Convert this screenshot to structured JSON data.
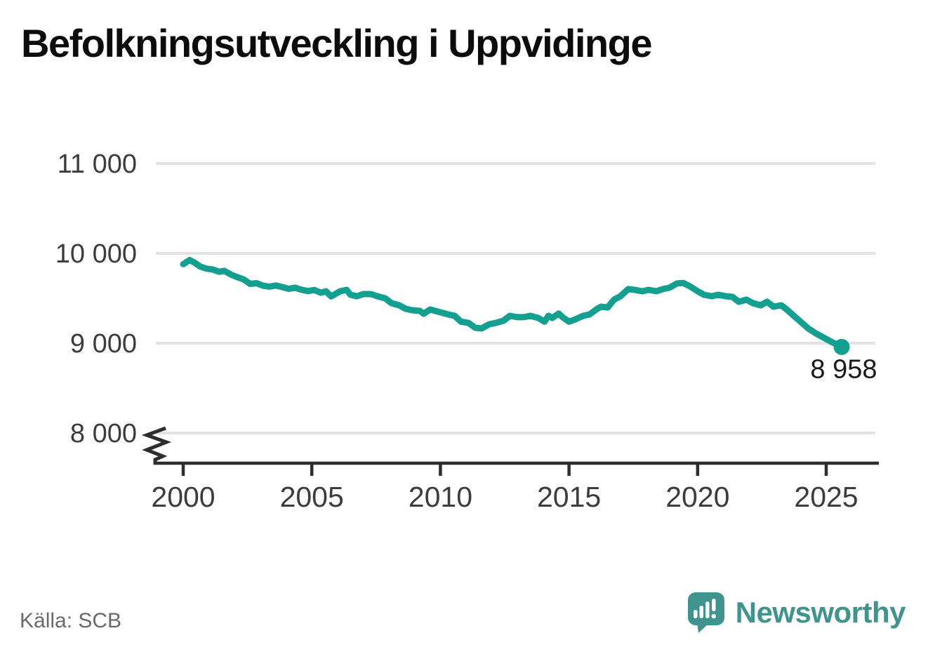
{
  "title": "Befolkningsutveckling i Uppvidinge",
  "source": "Källa: SCB",
  "brand": {
    "name": "Newsworthy",
    "color": "#3f948d",
    "icon": "speech-bubble-bar-chart-icon"
  },
  "colors": {
    "line": "#14a091",
    "grid": "#e3e3e3",
    "axis": "#2d2d2d",
    "tick_label": "#3c3c3c",
    "annotation": "#1a1a1a"
  },
  "chart_data": {
    "type": "line",
    "title": "Befolkningsutveckling i Uppvidinge",
    "xlabel": "",
    "ylabel": "",
    "grid": "horizontal",
    "legend": "none",
    "axis_break": true,
    "xlim": [
      1998.9,
      2027
    ],
    "ylim": [
      7800,
      11250
    ],
    "x_ticks": [
      {
        "label": "2000",
        "value": 2000
      },
      {
        "label": "2005",
        "value": 2005
      },
      {
        "label": "2010",
        "value": 2010
      },
      {
        "label": "2015",
        "value": 2015
      },
      {
        "label": "2020",
        "value": 2020
      },
      {
        "label": "2025",
        "value": 2025
      }
    ],
    "y_ticks": [
      {
        "label": "11 000",
        "value": 11000
      },
      {
        "label": "10 000",
        "value": 10000
      },
      {
        "label": "9 000",
        "value": 9000
      },
      {
        "label": "8 000",
        "value": 8000
      }
    ],
    "end_label": "8 958",
    "end_value": 8958,
    "series": [
      {
        "name": "Befolkning",
        "color": "#14a091",
        "x": [
          2000.0,
          2000.25,
          2000.45,
          2000.65,
          2000.9,
          2001.15,
          2001.4,
          2001.6,
          2001.85,
          2002.1,
          2002.35,
          2002.6,
          2002.85,
          2003.1,
          2003.35,
          2003.6,
          2003.85,
          2004.1,
          2004.35,
          2004.6,
          2004.85,
          2005.1,
          2005.35,
          2005.55,
          2005.75,
          2006.1,
          2006.35,
          2006.5,
          2006.75,
          2007.0,
          2007.3,
          2007.55,
          2007.85,
          2008.1,
          2008.4,
          2008.65,
          2008.9,
          2009.2,
          2009.35,
          2009.6,
          2010.0,
          2010.3,
          2010.55,
          2010.8,
          2011.1,
          2011.35,
          2011.6,
          2011.9,
          2012.15,
          2012.45,
          2012.7,
          2013.0,
          2013.25,
          2013.5,
          2013.8,
          2014.05,
          2014.2,
          2014.35,
          2014.6,
          2014.75,
          2015.0,
          2015.25,
          2015.55,
          2015.8,
          2016.1,
          2016.25,
          2016.5,
          2016.75,
          2017.0,
          2017.3,
          2017.55,
          2017.85,
          2018.1,
          2018.4,
          2018.65,
          2018.9,
          2019.2,
          2019.45,
          2019.7,
          2020.0,
          2020.25,
          2020.55,
          2020.8,
          2021.1,
          2021.35,
          2021.6,
          2021.9,
          2022.15,
          2022.45,
          2022.7,
          2022.95,
          2023.25,
          2023.5,
          2023.8,
          2024.05,
          2024.3,
          2024.6,
          2024.85,
          2025.15,
          2025.6
        ],
        "values": [
          9880,
          9925,
          9895,
          9855,
          9830,
          9820,
          9795,
          9805,
          9765,
          9735,
          9710,
          9660,
          9668,
          9640,
          9630,
          9642,
          9625,
          9605,
          9618,
          9595,
          9580,
          9592,
          9562,
          9578,
          9520,
          9578,
          9594,
          9539,
          9523,
          9547,
          9547,
          9523,
          9500,
          9445,
          9422,
          9383,
          9367,
          9359,
          9328,
          9375,
          9344,
          9320,
          9305,
          9240,
          9225,
          9172,
          9164,
          9211,
          9225,
          9250,
          9305,
          9290,
          9290,
          9305,
          9281,
          9240,
          9305,
          9281,
          9330,
          9290,
          9240,
          9266,
          9305,
          9320,
          9383,
          9406,
          9398,
          9484,
          9523,
          9602,
          9594,
          9578,
          9594,
          9578,
          9602,
          9617,
          9665,
          9670,
          9633,
          9578,
          9539,
          9523,
          9539,
          9523,
          9516,
          9461,
          9484,
          9445,
          9422,
          9461,
          9406,
          9422,
          9367,
          9290,
          9227,
          9164,
          9109,
          9070,
          9023,
          8958
        ]
      }
    ]
  }
}
